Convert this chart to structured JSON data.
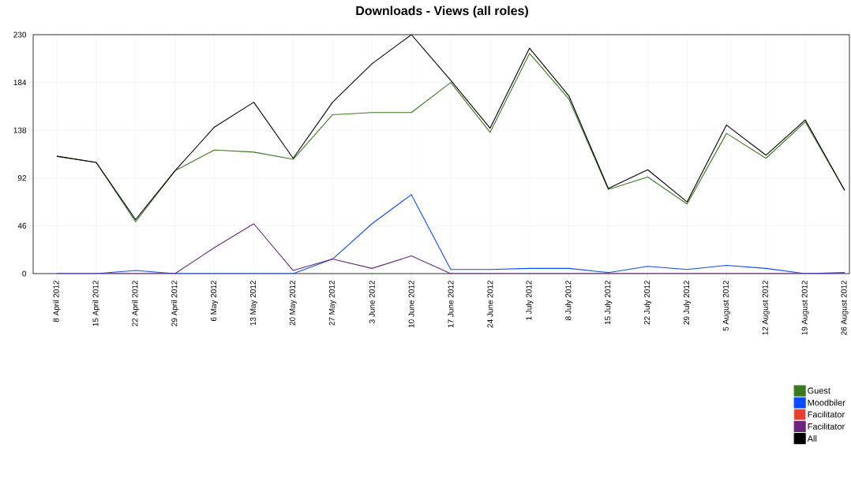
{
  "chart_data": {
    "type": "line",
    "title": "Downloads - Views (all roles)",
    "categories": [
      "8 April 2012",
      "15 April 2012",
      "22 April 2012",
      "29 April 2012",
      "6 May 2012",
      "13 May 2012",
      "20 May 2012",
      "27 May 2012",
      "3 June 2012",
      "10 June 2012",
      "17 June 2012",
      "24 June 2012",
      "1 July 2012",
      "8 July 2012",
      "15 July 2012",
      "22 July 2012",
      "29 July 2012",
      "5 August 2012",
      "12 August 2012",
      "19 August 2012",
      "26 August 2012"
    ],
    "series": [
      {
        "name": "Guest",
        "color": "#3a7a1e",
        "values": [
          113,
          107,
          50,
          99,
          119,
          117,
          110,
          153,
          155,
          155,
          184,
          136,
          212,
          168,
          81,
          93,
          67,
          135,
          111,
          146,
          80
        ]
      },
      {
        "name": "Moodbiler",
        "color": "#0a4cff",
        "values": [
          0,
          0,
          3,
          0,
          null,
          null,
          0,
          14,
          48,
          76,
          4,
          4,
          5,
          5,
          1,
          7,
          4,
          8,
          5,
          0,
          1
        ]
      },
      {
        "name": "Facilitator",
        "color": "#e8402e",
        "values": [
          null,
          null,
          null,
          null,
          null,
          null,
          null,
          null,
          null,
          null,
          null,
          null,
          null,
          null,
          null,
          null,
          null,
          null,
          null,
          null,
          null
        ]
      },
      {
        "name": "Facilitator",
        "color": "#6b2580",
        "values": [
          0,
          0,
          0,
          0,
          25,
          48,
          3,
          14,
          5,
          17,
          0,
          0,
          0,
          0,
          0,
          0,
          0,
          0,
          0,
          0,
          0
        ]
      },
      {
        "name": "All",
        "color": "#000000",
        "values": [
          113,
          107,
          52,
          99,
          141,
          165,
          111,
          165,
          202,
          230,
          186,
          140,
          217,
          171,
          82,
          100,
          69,
          143,
          114,
          148,
          80
        ]
      }
    ],
    "ylim": [
      0,
      230
    ],
    "yticks": [
      0,
      46,
      92,
      138,
      184,
      230
    ],
    "grid": true,
    "legend": "bottom right",
    "marker": "none",
    "line_style": "solid"
  }
}
